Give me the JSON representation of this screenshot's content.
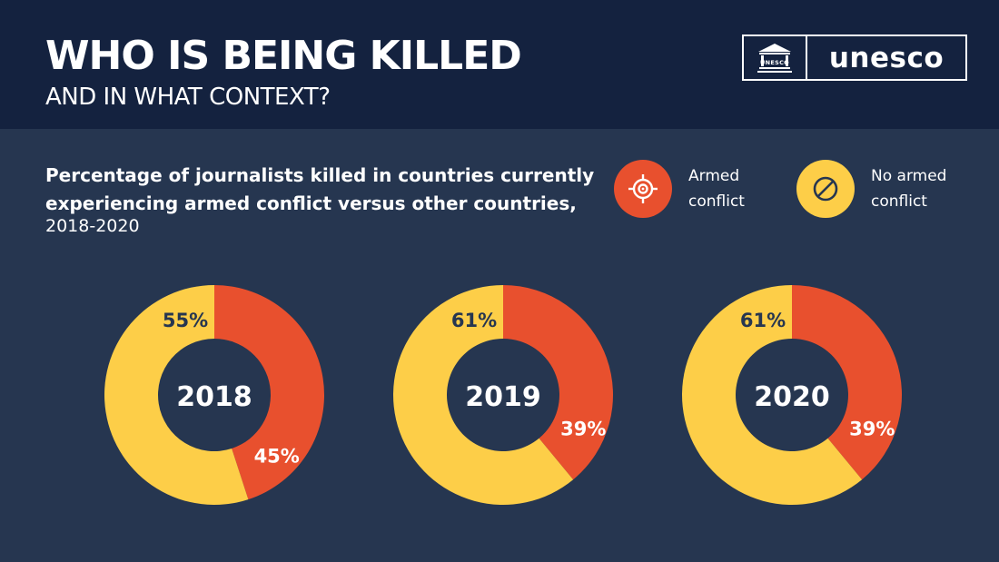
{
  "header": {
    "title": "WHO IS BEING KILLED",
    "subtitle": "AND IN WHAT CONTEXT?",
    "logo_text": "unesco",
    "logo_emblem_text": "UNESCO"
  },
  "legend": [
    {
      "label_line1": "Armed",
      "label_line2": "conflict",
      "color": "#e8502e",
      "icon": "target-icon"
    },
    {
      "label_line1": "No armed",
      "label_line2": "conflict",
      "color": "#fdce48",
      "icon": "prohibited-icon"
    }
  ],
  "chart_data": {
    "type": "pie",
    "title_line1": "Percentage of journalists killed in countries currently",
    "title_line2": "experiencing armed conflict versus other countries,",
    "subtitle": "2018-2020",
    "charts": [
      {
        "year": "2018",
        "armed_conflict": 45,
        "no_armed_conflict": 55,
        "armed_label": "45%",
        "no_armed_label": "55%"
      },
      {
        "year": "2019",
        "armed_conflict": 39,
        "no_armed_conflict": 61,
        "armed_label": "39%",
        "no_armed_label": "61%"
      },
      {
        "year": "2020",
        "armed_conflict": 39,
        "no_armed_conflict": 61,
        "armed_label": "39%",
        "no_armed_label": "61%"
      }
    ]
  },
  "colors": {
    "armed": "#e8502e",
    "no_armed": "#fdce48",
    "background": "#263650",
    "header_bg": "#14223f",
    "dark_text": "#263650"
  }
}
